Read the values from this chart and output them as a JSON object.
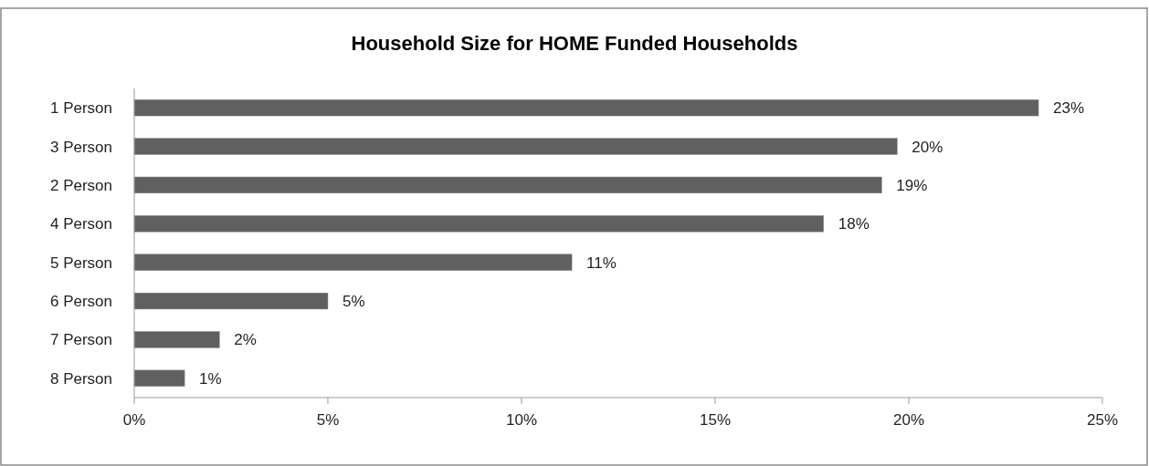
{
  "chart_data": {
    "type": "bar",
    "orientation": "horizontal",
    "title": "Household Size for HOME Funded Households",
    "categories": [
      "1 Person",
      "3 Person",
      "2 Person",
      "4 Person",
      "5 Person",
      "6 Person",
      "7 Person",
      "8 Person"
    ],
    "values": [
      23.35,
      19.7,
      19.3,
      17.8,
      11.3,
      5.0,
      2.2,
      1.3
    ],
    "value_labels": [
      "23%",
      "20%",
      "19%",
      "18%",
      "11%",
      "5%",
      "2%",
      "1%"
    ],
    "color": "#606060",
    "xlim": [
      0,
      25
    ],
    "xticks": [
      {
        "value": 0,
        "label": "0%"
      },
      {
        "value": 5,
        "label": "5%"
      },
      {
        "value": 10,
        "label": "10%"
      },
      {
        "value": 15,
        "label": "15%"
      },
      {
        "value": 20,
        "label": "20%"
      },
      {
        "value": 25,
        "label": "25%"
      }
    ],
    "grid": false
  }
}
